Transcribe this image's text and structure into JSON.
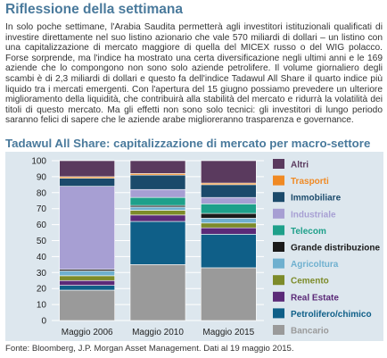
{
  "article": {
    "title": "Riflessione della settimana",
    "body": "In solo poche settimane, l'Arabia Saudita permetterà agli investitori istituzionali qualificati di investire direttamente nel suo listino azionario che vale 570 miliardi di dollari –  un listino con una capitalizzazione di mercato maggiore di quella del MICEX russo o del WIG polacco. Forse sorprende, ma l'indice ha mostrato una certa diversificazione negli ultimi anni e le 169 aziende che lo compongono non sono solo aziende petrolifere. Il volume giornaliero degli scambi è di 2,3 miliardi di dollari e questo fa dell'indice Tadawul All Share il quarto indice più liquido tra i mercati emergenti. Con l'apertura del 15 giugno possiamo prevedere un ulteriore miglioramento della liquidità, che contribuirà alla stabilità del mercato e ridurrà la volatilità dei titoli di questo mercato. Ma gli effetti non sono solo tecnici: gli investitori di lungo periodo saranno felici di sapere che le aziende arabe  miglioreranno trasparenza e governance."
  },
  "chart_data": {
    "type": "bar",
    "stacked": true,
    "title": "Tadawul All Share: capitalizzazione di mercato per macro-settore",
    "categories": [
      "Maggio 2006",
      "Maggio 2010",
      "Maggio 2015"
    ],
    "ylim": [
      0,
      100
    ],
    "yticks": [
      "0",
      "10",
      "20",
      "30",
      "40",
      "50",
      "60",
      "70",
      "80",
      "90",
      "100"
    ],
    "grid": true,
    "legend_position": "right",
    "series": [
      {
        "name": "Bancario",
        "color": "#9a9a9a",
        "values": [
          19,
          35,
          33
        ]
      },
      {
        "name": "Petrolifero/chimico",
        "color": "#0f5f88",
        "values": [
          3,
          27,
          21
        ]
      },
      {
        "name": "Real Estate",
        "color": "#5b2a78",
        "values": [
          3,
          4,
          4
        ]
      },
      {
        "name": "Cemento",
        "color": "#7d8b2a",
        "values": [
          3,
          3,
          3
        ]
      },
      {
        "name": "Agricoltura",
        "color": "#6fb0cf",
        "values": [
          3,
          2,
          3
        ]
      },
      {
        "name": "Grande distribuzione",
        "color": "#1a1a1a",
        "values": [
          1,
          1,
          3
        ]
      },
      {
        "name": "Telecom",
        "color": "#1ea08a",
        "values": [
          0,
          5,
          6
        ]
      },
      {
        "name": "Industriale",
        "color": "#a79fd3",
        "values": [
          52,
          5,
          4
        ]
      },
      {
        "name": "Immobiliare",
        "color": "#1b4a6b",
        "values": [
          5,
          9,
          8
        ]
      },
      {
        "name": "Trasporti",
        "color": "#f08a24",
        "values": [
          1,
          1,
          1
        ]
      },
      {
        "name": "Altri",
        "color": "#5a3a5e",
        "values": [
          10,
          8,
          14
        ]
      }
    ],
    "legend_order": [
      "Altri",
      "Trasporti",
      "Immobiliare",
      "Industriale",
      "Telecom",
      "Grande distribuzione",
      "Agricoltura",
      "Cemento",
      "Real Estate",
      "Petrolifero/chimico",
      "Bancario"
    ]
  },
  "source": "Fonte: Bloomberg, J.P. Morgan Asset Management. Dati al 19 maggio 2015."
}
